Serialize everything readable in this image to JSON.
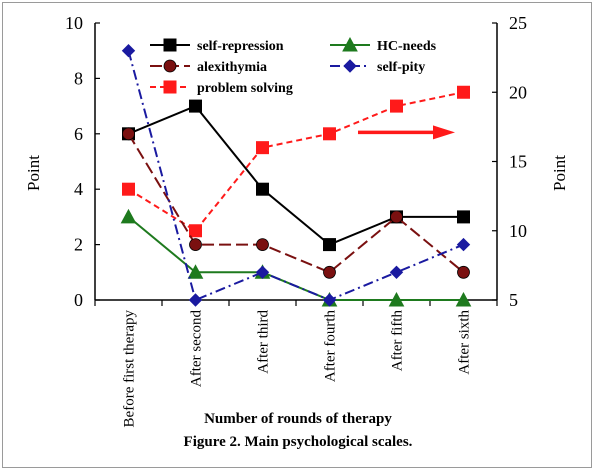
{
  "chart_data": {
    "type": "line",
    "caption": "Figure 2. Main psychological scales.",
    "xlabel": "Number of rounds of therapy",
    "ylabel": "Point",
    "ylabel_right": "Point",
    "categories": [
      "Before first therapy",
      "After second",
      "After third",
      "After fourth",
      "After fifth",
      "After sixth"
    ],
    "ylim": [
      0,
      10
    ],
    "y_ticks": [
      "0",
      "2",
      "4",
      "6",
      "8",
      "10"
    ],
    "ylim_right": [
      5,
      25
    ],
    "y_ticks_right": [
      "5",
      "10",
      "15",
      "20",
      "25"
    ],
    "series": [
      {
        "name": "self-repression",
        "axis": "left",
        "values": [
          6,
          7,
          4,
          2,
          3,
          3
        ],
        "color": "#000000",
        "marker": "square",
        "line": "solid"
      },
      {
        "name": "HC-needs",
        "axis": "left",
        "values": [
          3,
          1,
          1,
          0,
          0,
          0
        ],
        "color": "#1e7a1e",
        "marker": "triangle",
        "line": "solid"
      },
      {
        "name": "alexithymia",
        "axis": "left",
        "values": [
          6,
          2,
          2,
          1,
          3,
          1
        ],
        "color": "#7a1010",
        "marker": "circle",
        "line": "longdash"
      },
      {
        "name": "self-pity",
        "axis": "left",
        "values": [
          9,
          0,
          1,
          0,
          1,
          2
        ],
        "color": "#1a1aa0",
        "marker": "diamond",
        "line": "dashdot"
      },
      {
        "name": "problem solving",
        "axis": "right",
        "values": [
          13,
          10,
          16,
          17,
          19,
          20
        ],
        "color": "#ff1a1a",
        "marker": "square",
        "line": "dash"
      }
    ],
    "annotation": {
      "type": "arrow",
      "direction": "right",
      "color": "#ff1a1a",
      "meaning": "problem solving uses right axis"
    },
    "grid": false,
    "legend": "top-right"
  }
}
